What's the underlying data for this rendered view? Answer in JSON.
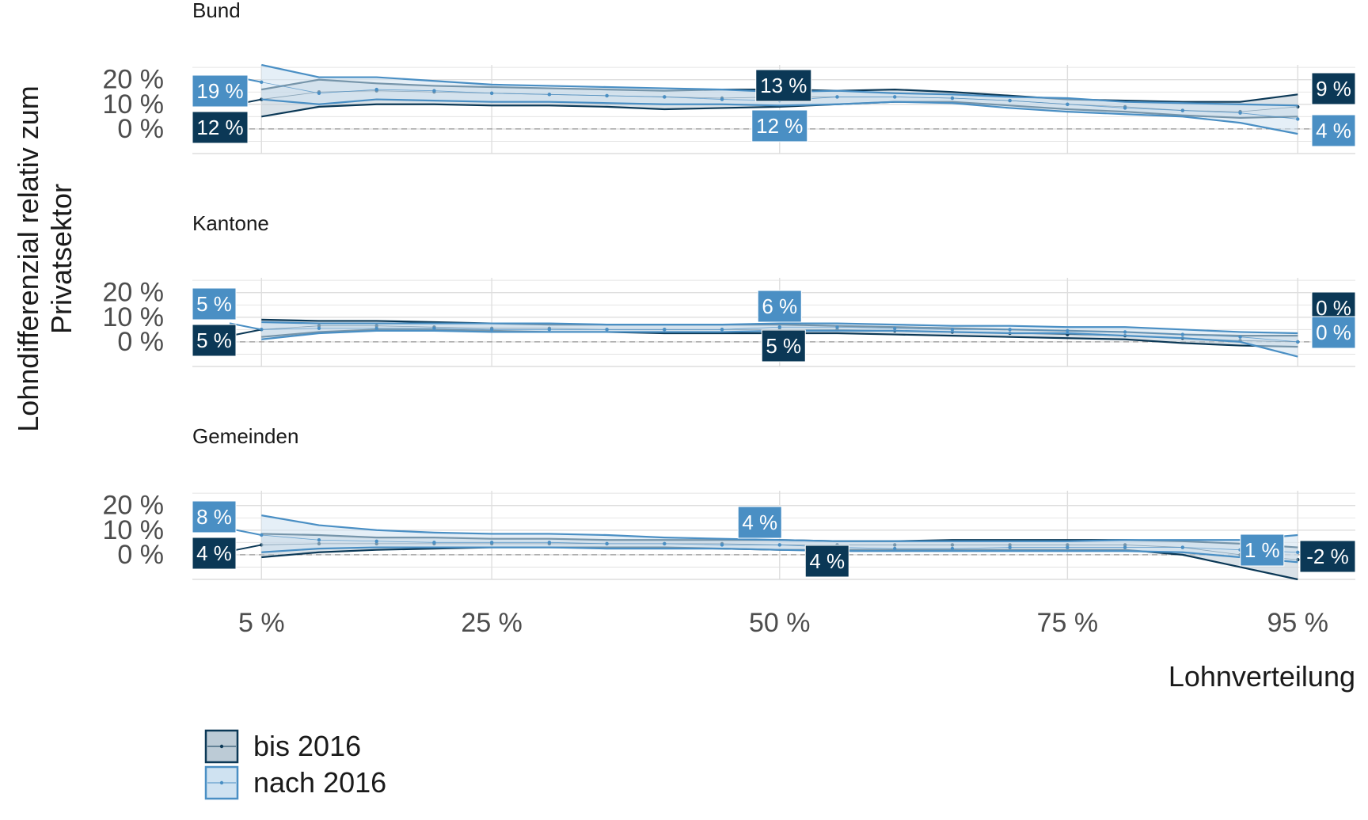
{
  "colors": {
    "bis": "#0b3856",
    "nach": "#4a8fc4",
    "bis_fill": "#bccbd6",
    "nach_fill": "#cfe2f1",
    "grid": "#dedede",
    "zero": "#9a9a9a",
    "axis_text": "#4d4d4d"
  },
  "chart_data": {
    "type": "line",
    "ylabel": "Lohndifferenzial relativ zum Privatsektor",
    "xlabel": "Lohnverteilung",
    "x": [
      5,
      10,
      15,
      20,
      25,
      30,
      35,
      40,
      45,
      50,
      55,
      60,
      65,
      70,
      75,
      80,
      85,
      90,
      95
    ],
    "x_ticks": [
      5,
      25,
      50,
      75,
      95
    ],
    "x_tick_labels": [
      "5 %",
      "25 %",
      "50 %",
      "75 %",
      "95 %"
    ],
    "xlim": [
      -1,
      100
    ],
    "y_ticks": [
      0,
      10,
      20
    ],
    "y_tick_labels": [
      "0 %",
      "10 %",
      "20 %"
    ],
    "ylim": [
      -10,
      26
    ],
    "legend": {
      "position": "bottom-left",
      "items": [
        {
          "series": "bis",
          "label": "bis 2016"
        },
        {
          "series": "nach",
          "label": "nach 2016"
        }
      ]
    },
    "panels": [
      {
        "title": "Bund",
        "series": [
          {
            "key": "bis",
            "name": "bis 2016",
            "values": [
              12,
              15,
              15.5,
              15,
              14.5,
              14,
              13.5,
              13,
              12.5,
              13,
              13,
              13,
              12.5,
              11.5,
              10,
              9,
              7.5,
              7,
              9
            ],
            "lower": [
              5,
              9,
              10,
              10,
              9.5,
              9.5,
              9,
              8,
              8.5,
              9,
              10,
              11,
              11,
              9.5,
              8,
              7,
              5.5,
              4.5,
              5
            ],
            "upper": [
              16,
              20,
              18.5,
              17.5,
              17,
              16.5,
              16,
              15.5,
              16,
              16,
              15.5,
              16,
              15,
              13.5,
              12,
              11.5,
              11,
              11,
              14
            ]
          },
          {
            "key": "nach",
            "name": "nach 2016",
            "values": [
              19,
              14.5,
              16,
              15.5,
              14.5,
              14,
              13.5,
              13,
              12,
              11.5,
              13,
              13,
              12.5,
              11.5,
              10,
              8.5,
              7.5,
              6.5,
              4
            ],
            "lower": [
              12,
              10,
              12,
              11.5,
              11,
              11,
              10.5,
              10,
              10,
              9.5,
              10,
              11,
              10.5,
              8.5,
              7,
              6,
              5,
              2.5,
              -2
            ],
            "upper": [
              26,
              21,
              21,
              19.5,
              18,
              17.5,
              17,
              16.5,
              16,
              15,
              15.5,
              14.5,
              14,
              13,
              12.5,
              11,
              10.5,
              10,
              9.5
            ]
          }
        ],
        "labels": {
          "bis_start": "12 %",
          "nach_start": "19 %",
          "bis_mid": "13 %",
          "nach_mid": "12 %",
          "bis_end": "9 %",
          "nach_end": "4 %"
        }
      },
      {
        "title": "Kantone",
        "series": [
          {
            "key": "bis",
            "name": "bis 2016",
            "values": [
              5,
              6.5,
              6.5,
              6,
              5.5,
              5.5,
              5,
              5,
              5,
              5,
              5,
              4.5,
              4,
              3.5,
              3,
              2.5,
              1.5,
              0.5,
              0
            ],
            "lower": [
              2,
              4,
              5,
              5,
              4.5,
              4,
              4,
              3.5,
              3.5,
              3.5,
              3.5,
              3,
              2.5,
              2,
              1.5,
              1,
              -0.5,
              -1.5,
              -2
            ],
            "upper": [
              9,
              8.5,
              8.5,
              8,
              7.5,
              7,
              7,
              7,
              7,
              7,
              6.5,
              6,
              5.5,
              5,
              4.5,
              4,
              3,
              2.5,
              2.5
            ]
          },
          {
            "key": "nach",
            "name": "nach 2016",
            "values": [
              5,
              5.5,
              5.5,
              5.5,
              5,
              5,
              5,
              5,
              5,
              6,
              6,
              5.5,
              5,
              5,
              4.5,
              4,
              3,
              2,
              0
            ],
            "lower": [
              1,
              3.5,
              4.5,
              4.5,
              4,
              4,
              4,
              4,
              4,
              4.5,
              4.5,
              4.5,
              4,
              3.5,
              3.5,
              2.5,
              1.5,
              0,
              -6
            ],
            "upper": [
              8,
              7.5,
              7.5,
              7.5,
              7.5,
              7.5,
              7,
              7,
              7,
              7.5,
              7.5,
              7,
              6.5,
              6.5,
              6,
              6,
              5,
              4,
              3.5
            ]
          }
        ],
        "labels": {
          "bis_start": "5 %",
          "nach_start": "5 %",
          "bis_mid": "5 %",
          "nach_mid": "6 %",
          "bis_end": "0 %",
          "nach_end": "0 %"
        }
      },
      {
        "title": "Gemeinden",
        "series": [
          {
            "key": "bis",
            "name": "bis 2016",
            "values": [
              4,
              4.5,
              4.5,
              4.5,
              4.5,
              4.5,
              4.5,
              4.5,
              4.5,
              4,
              4,
              4,
              4,
              4,
              4,
              4,
              3,
              0,
              -2
            ],
            "lower": [
              -1,
              1,
              2,
              2.5,
              3,
              3,
              3,
              3,
              2.5,
              2,
              2,
              2,
              2,
              2,
              2,
              2,
              0,
              -5,
              -10
            ],
            "upper": [
              8.5,
              8,
              7,
              7,
              6.5,
              6.5,
              6,
              6,
              6,
              6,
              5.5,
              5.5,
              6,
              6,
              6,
              6,
              5.5,
              4.5,
              3
            ]
          },
          {
            "key": "nach",
            "name": "nach 2016",
            "values": [
              8,
              6,
              5.5,
              5,
              5,
              5,
              4.5,
              4.5,
              4,
              4,
              3,
              2.5,
              2.5,
              3,
              3,
              3,
              3,
              2,
              1
            ],
            "lower": [
              1,
              2.5,
              3,
              3,
              3,
              3,
              2.5,
              2.5,
              2.5,
              2,
              1.5,
              1.5,
              1.5,
              1.5,
              1.5,
              1.5,
              1,
              -1,
              -3
            ],
            "upper": [
              16,
              12,
              10,
              9,
              8.5,
              8.5,
              8,
              7,
              6.5,
              6,
              5.5,
              5.5,
              5.5,
              5.5,
              5.5,
              6,
              6,
              6,
              8
            ]
          }
        ],
        "labels": {
          "bis_start": "4 %",
          "nach_start": "8 %",
          "bis_mid": "4 %",
          "nach_mid": "4 %",
          "bis_end": "-2 %",
          "nach_end": "1 %"
        }
      }
    ]
  }
}
